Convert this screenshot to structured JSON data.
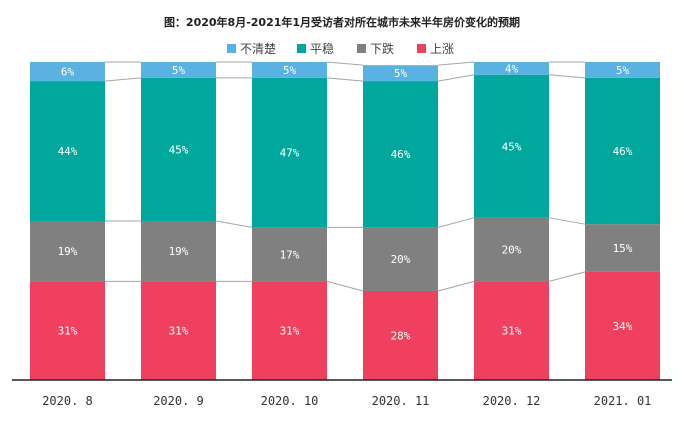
{
  "chart_data": {
    "type": "bar",
    "stacked": true,
    "title": "图：2020年8月-2021年1月受访者对所在城市未来半年房价变化的预期",
    "categories": [
      "2020. 8",
      "2020. 9",
      "2020. 10",
      "2020. 11",
      "2020. 12",
      "2021. 01"
    ],
    "series": [
      {
        "name": "上涨",
        "color": "#f0405f",
        "values": [
          31,
          31,
          31,
          28,
          31,
          34
        ],
        "labels": [
          "31%",
          "31%",
          "31%",
          "28%",
          "31%",
          "34%"
        ]
      },
      {
        "name": "下跌",
        "color": "#808080",
        "values": [
          19,
          19,
          17,
          20,
          20,
          15
        ],
        "labels": [
          "19%",
          "19%",
          "17%",
          "20%",
          "20%",
          "15%"
        ]
      },
      {
        "name": "平稳",
        "color": "#00a79d",
        "values": [
          44,
          45,
          47,
          46,
          45,
          46
        ],
        "labels": [
          "44%",
          "45%",
          "47%",
          "46%",
          "45%",
          "46%"
        ]
      },
      {
        "name": "不清楚",
        "color": "#5ab2e3",
        "values": [
          6,
          5,
          5,
          5,
          4,
          5
        ],
        "labels": [
          "6%",
          "5%",
          "5%",
          "5%",
          "4%",
          "5%"
        ]
      }
    ],
    "legend_order": [
      "不清楚",
      "平稳",
      "下跌",
      "上涨"
    ],
    "legend_position": "top",
    "ylim": [
      0,
      100
    ],
    "grid": false,
    "connector_lines": true
  }
}
